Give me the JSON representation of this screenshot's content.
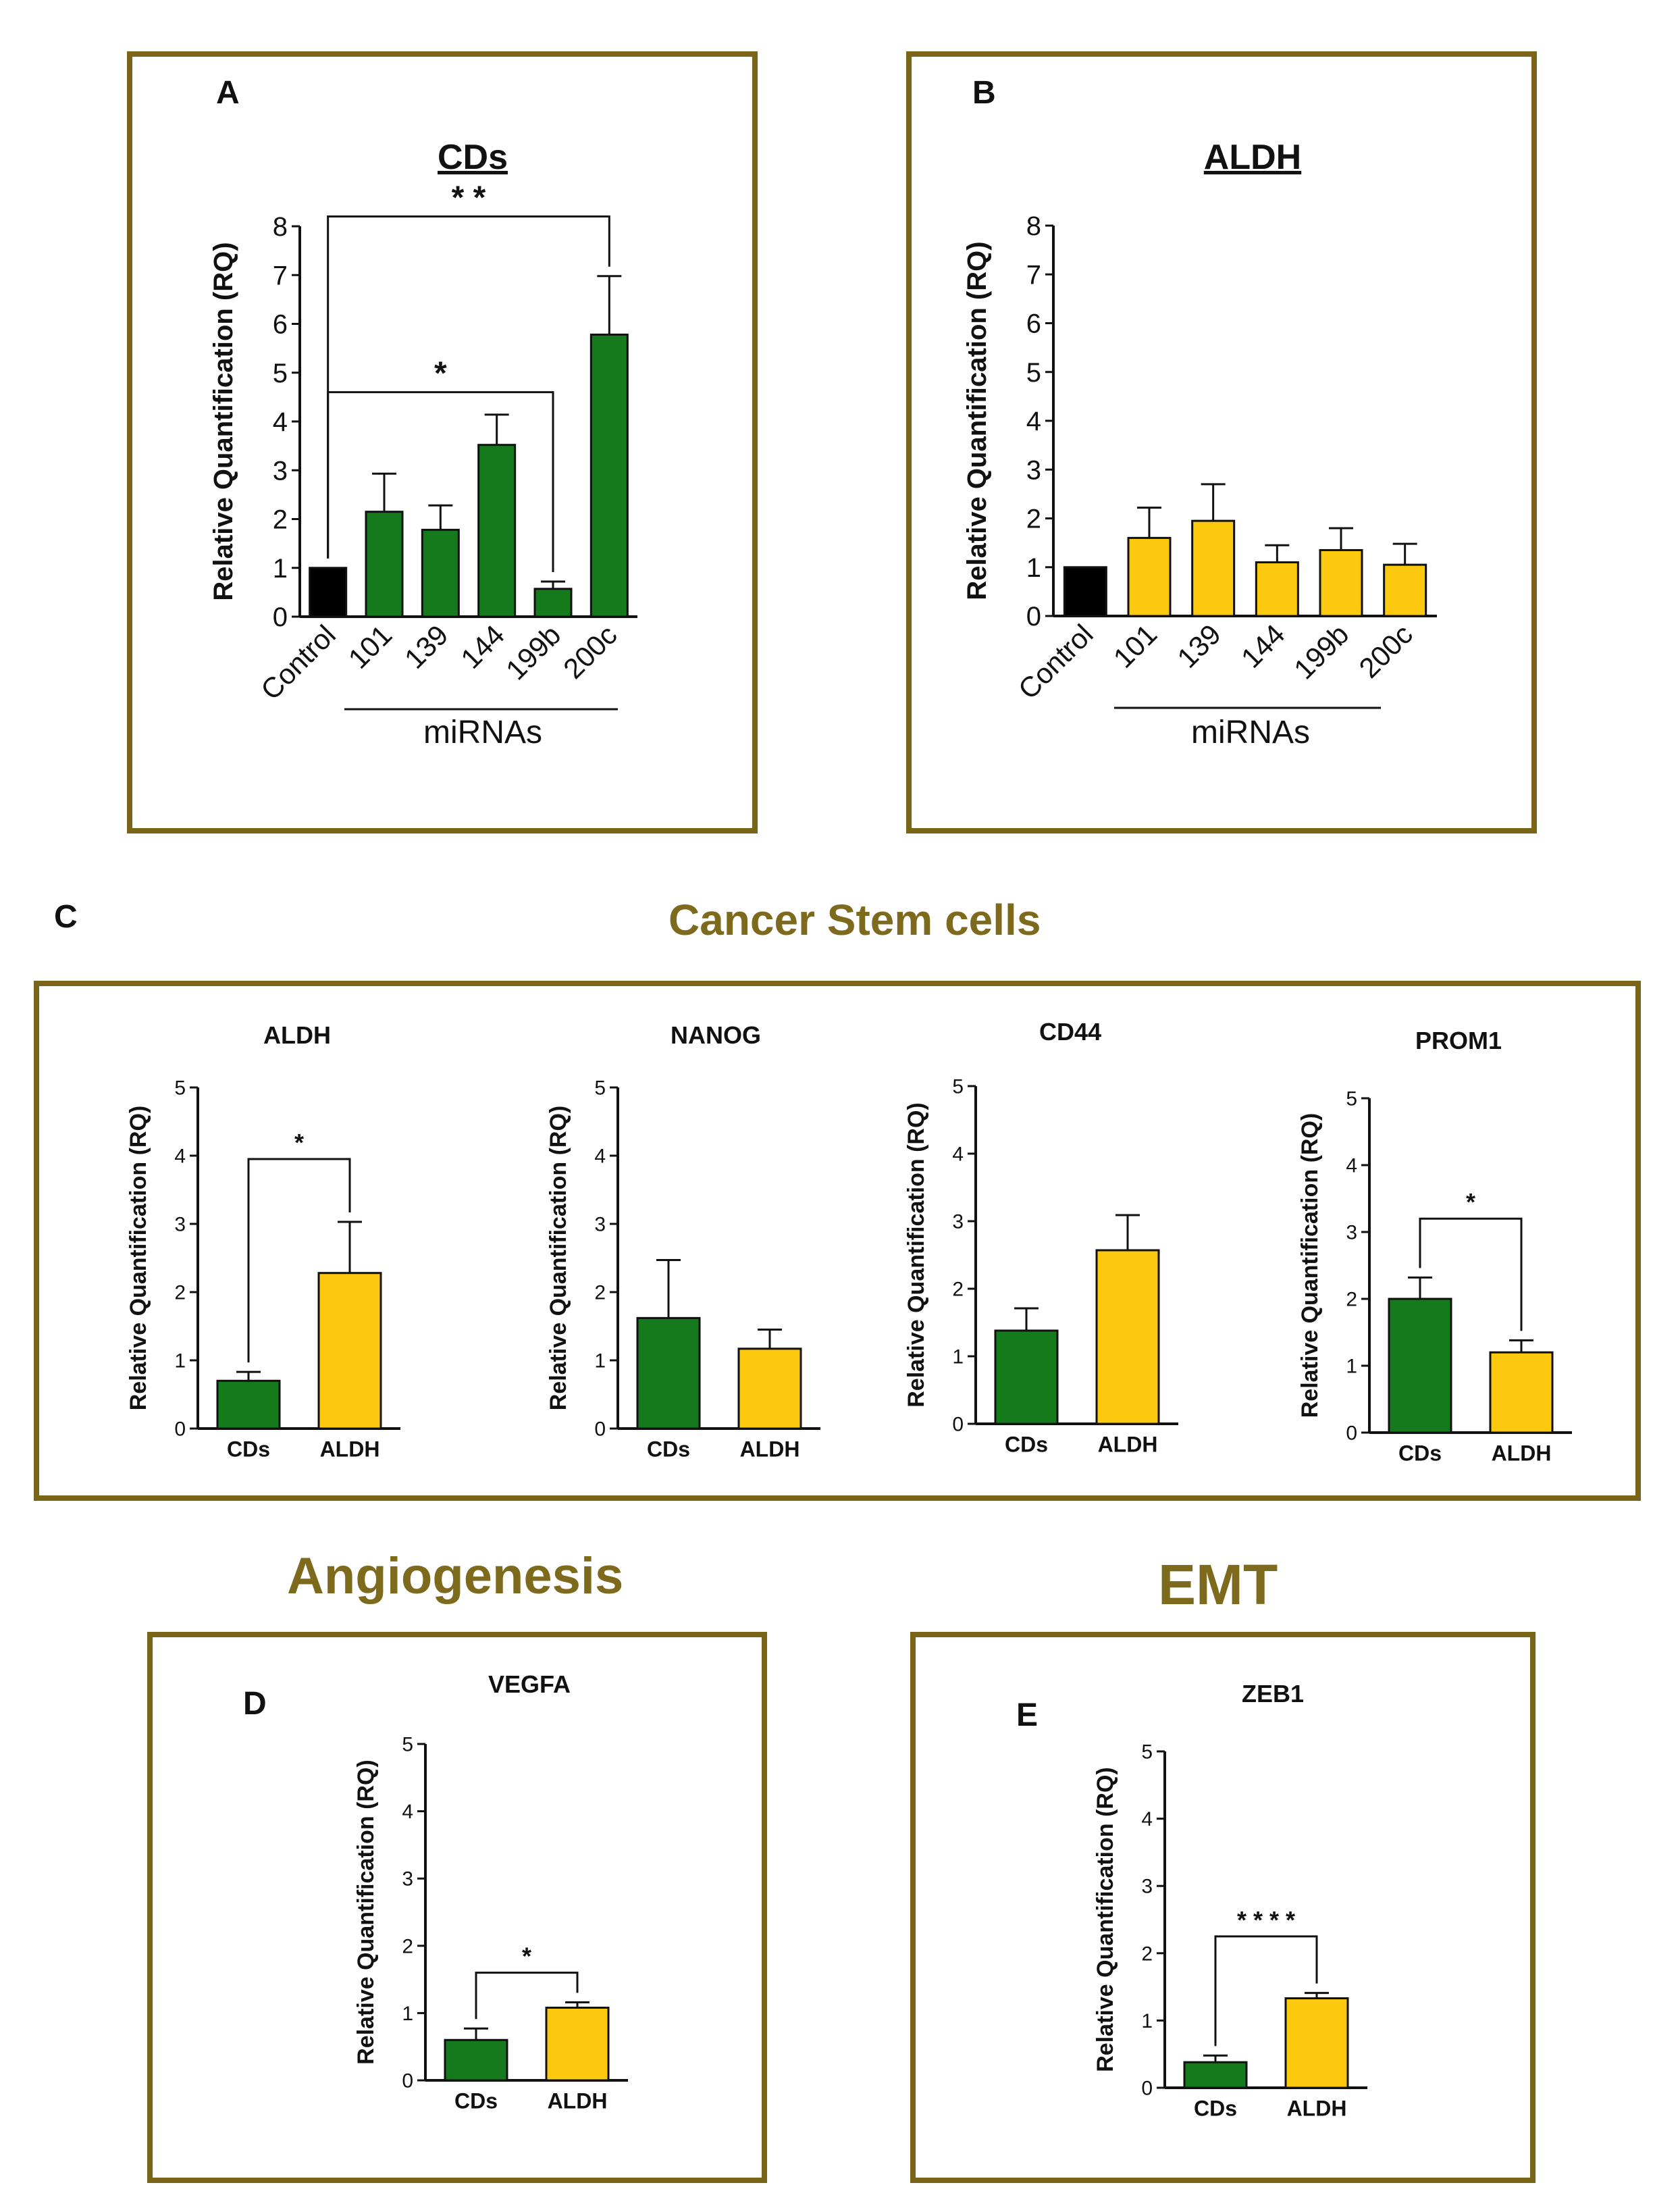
{
  "colors": {
    "green": "#157a1c",
    "yellow": "#fcc90f",
    "control": "#000000",
    "frame": "#7a6418",
    "heading": "#7d6a1d"
  },
  "panels": {
    "A": "A",
    "B": "B",
    "C": "C",
    "D": "D",
    "E": "E"
  },
  "headings": {
    "cancer_stem_cells": "Cancer Stem cells",
    "angiogenesis": "Angiogenesis",
    "emt": "EMT"
  },
  "chart_data": [
    {
      "id": "A",
      "type": "bar",
      "title": "CDs",
      "title_color": "#4a7a2c",
      "ylabel": "Relative Quantification (RQ)",
      "xlabel": "miRNAs",
      "ylim": [
        0,
        8
      ],
      "yticks": [
        "0",
        "1",
        "2",
        "3",
        "4",
        "5",
        "6",
        "7",
        "8"
      ],
      "categories": [
        "Control",
        "101",
        "139",
        "144",
        "199b",
        "200c"
      ],
      "values": [
        1.0,
        2.15,
        1.78,
        3.52,
        0.57,
        5.78
      ],
      "errors": [
        0,
        0.78,
        0.5,
        0.62,
        0.15,
        1.2
      ],
      "bar_colors": [
        "#000000",
        "#157a1c",
        "#157a1c",
        "#157a1c",
        "#157a1c",
        "#157a1c"
      ],
      "significance": [
        {
          "from": 0,
          "to": 5,
          "label": "* *",
          "y": 8.2
        },
        {
          "from": 0,
          "to": 4,
          "label": "*",
          "y": 4.6
        }
      ]
    },
    {
      "id": "B",
      "type": "bar",
      "title": "ALDH",
      "title_color": "#9a7a14",
      "ylabel": "Relative Quantification (RQ)",
      "xlabel": "miRNAs",
      "ylim": [
        0,
        8
      ],
      "yticks": [
        "0",
        "1",
        "2",
        "3",
        "4",
        "5",
        "6",
        "7",
        "8"
      ],
      "categories": [
        "Control",
        "101",
        "139",
        "144",
        "199b",
        "200c"
      ],
      "values": [
        1.0,
        1.6,
        1.95,
        1.1,
        1.35,
        1.05
      ],
      "errors": [
        0,
        0.62,
        0.75,
        0.35,
        0.45,
        0.43
      ],
      "bar_colors": [
        "#000000",
        "#fcc90f",
        "#fcc90f",
        "#fcc90f",
        "#fcc90f",
        "#fcc90f"
      ],
      "significance": []
    },
    {
      "id": "C1",
      "type": "bar",
      "title": "ALDH",
      "ylabel": "Relative Quantification (RQ)",
      "ylim": [
        0,
        5
      ],
      "yticks": [
        "0",
        "1",
        "2",
        "3",
        "4",
        "5"
      ],
      "categories": [
        "CDs",
        "ALDH"
      ],
      "values": [
        0.7,
        2.28
      ],
      "errors": [
        0.13,
        0.75
      ],
      "bar_colors": [
        "#157a1c",
        "#fcc90f"
      ],
      "significance": [
        {
          "from": 0,
          "to": 1,
          "label": "*",
          "y": 3.95
        }
      ]
    },
    {
      "id": "C2",
      "type": "bar",
      "title": "NANOG",
      "ylabel": "Relative Quantification (RQ)",
      "ylim": [
        0,
        5
      ],
      "yticks": [
        "0",
        "1",
        "2",
        "3",
        "4",
        "5"
      ],
      "categories": [
        "CDs",
        "ALDH"
      ],
      "values": [
        1.62,
        1.17
      ],
      "errors": [
        0.85,
        0.28
      ],
      "bar_colors": [
        "#157a1c",
        "#fcc90f"
      ],
      "significance": []
    },
    {
      "id": "C3",
      "type": "bar",
      "title": "CD44",
      "ylabel": "Relative Quantification (RQ)",
      "ylim": [
        0,
        5
      ],
      "yticks": [
        "0",
        "1",
        "2",
        "3",
        "4",
        "5"
      ],
      "categories": [
        "CDs",
        "ALDH"
      ],
      "values": [
        1.38,
        2.57
      ],
      "errors": [
        0.33,
        0.52
      ],
      "bar_colors": [
        "#157a1c",
        "#fcc90f"
      ],
      "significance": []
    },
    {
      "id": "C4",
      "type": "bar",
      "title": "PROM1",
      "ylabel": "Relative Quantification (RQ)",
      "ylim": [
        0,
        5
      ],
      "yticks": [
        "0",
        "1",
        "2",
        "3",
        "4",
        "5"
      ],
      "categories": [
        "CDs",
        "ALDH"
      ],
      "values": [
        2.0,
        1.2
      ],
      "errors": [
        0.32,
        0.18
      ],
      "bar_colors": [
        "#157a1c",
        "#fcc90f"
      ],
      "significance": [
        {
          "from": 0,
          "to": 1,
          "label": "*",
          "y": 3.2
        }
      ]
    },
    {
      "id": "D",
      "type": "bar",
      "title": "VEGFA",
      "ylabel": "Relative Quantification (RQ)",
      "ylim": [
        0,
        5
      ],
      "yticks": [
        "0",
        "1",
        "2",
        "3",
        "4",
        "5"
      ],
      "categories": [
        "CDs",
        "ALDH"
      ],
      "values": [
        0.6,
        1.08
      ],
      "errors": [
        0.17,
        0.08
      ],
      "bar_colors": [
        "#157a1c",
        "#fcc90f"
      ],
      "significance": [
        {
          "from": 0,
          "to": 1,
          "label": "*",
          "y": 1.6
        }
      ]
    },
    {
      "id": "E",
      "type": "bar",
      "title": "ZEB1",
      "ylabel": "Relative Quantification (RQ)",
      "ylim": [
        0,
        5
      ],
      "yticks": [
        "0",
        "1",
        "2",
        "3",
        "4",
        "5"
      ],
      "categories": [
        "CDs",
        "ALDH"
      ],
      "values": [
        0.38,
        1.33
      ],
      "errors": [
        0.1,
        0.08
      ],
      "bar_colors": [
        "#157a1c",
        "#fcc90f"
      ],
      "significance": [
        {
          "from": 0,
          "to": 1,
          "label": "* * * *",
          "y": 2.25
        }
      ]
    }
  ]
}
